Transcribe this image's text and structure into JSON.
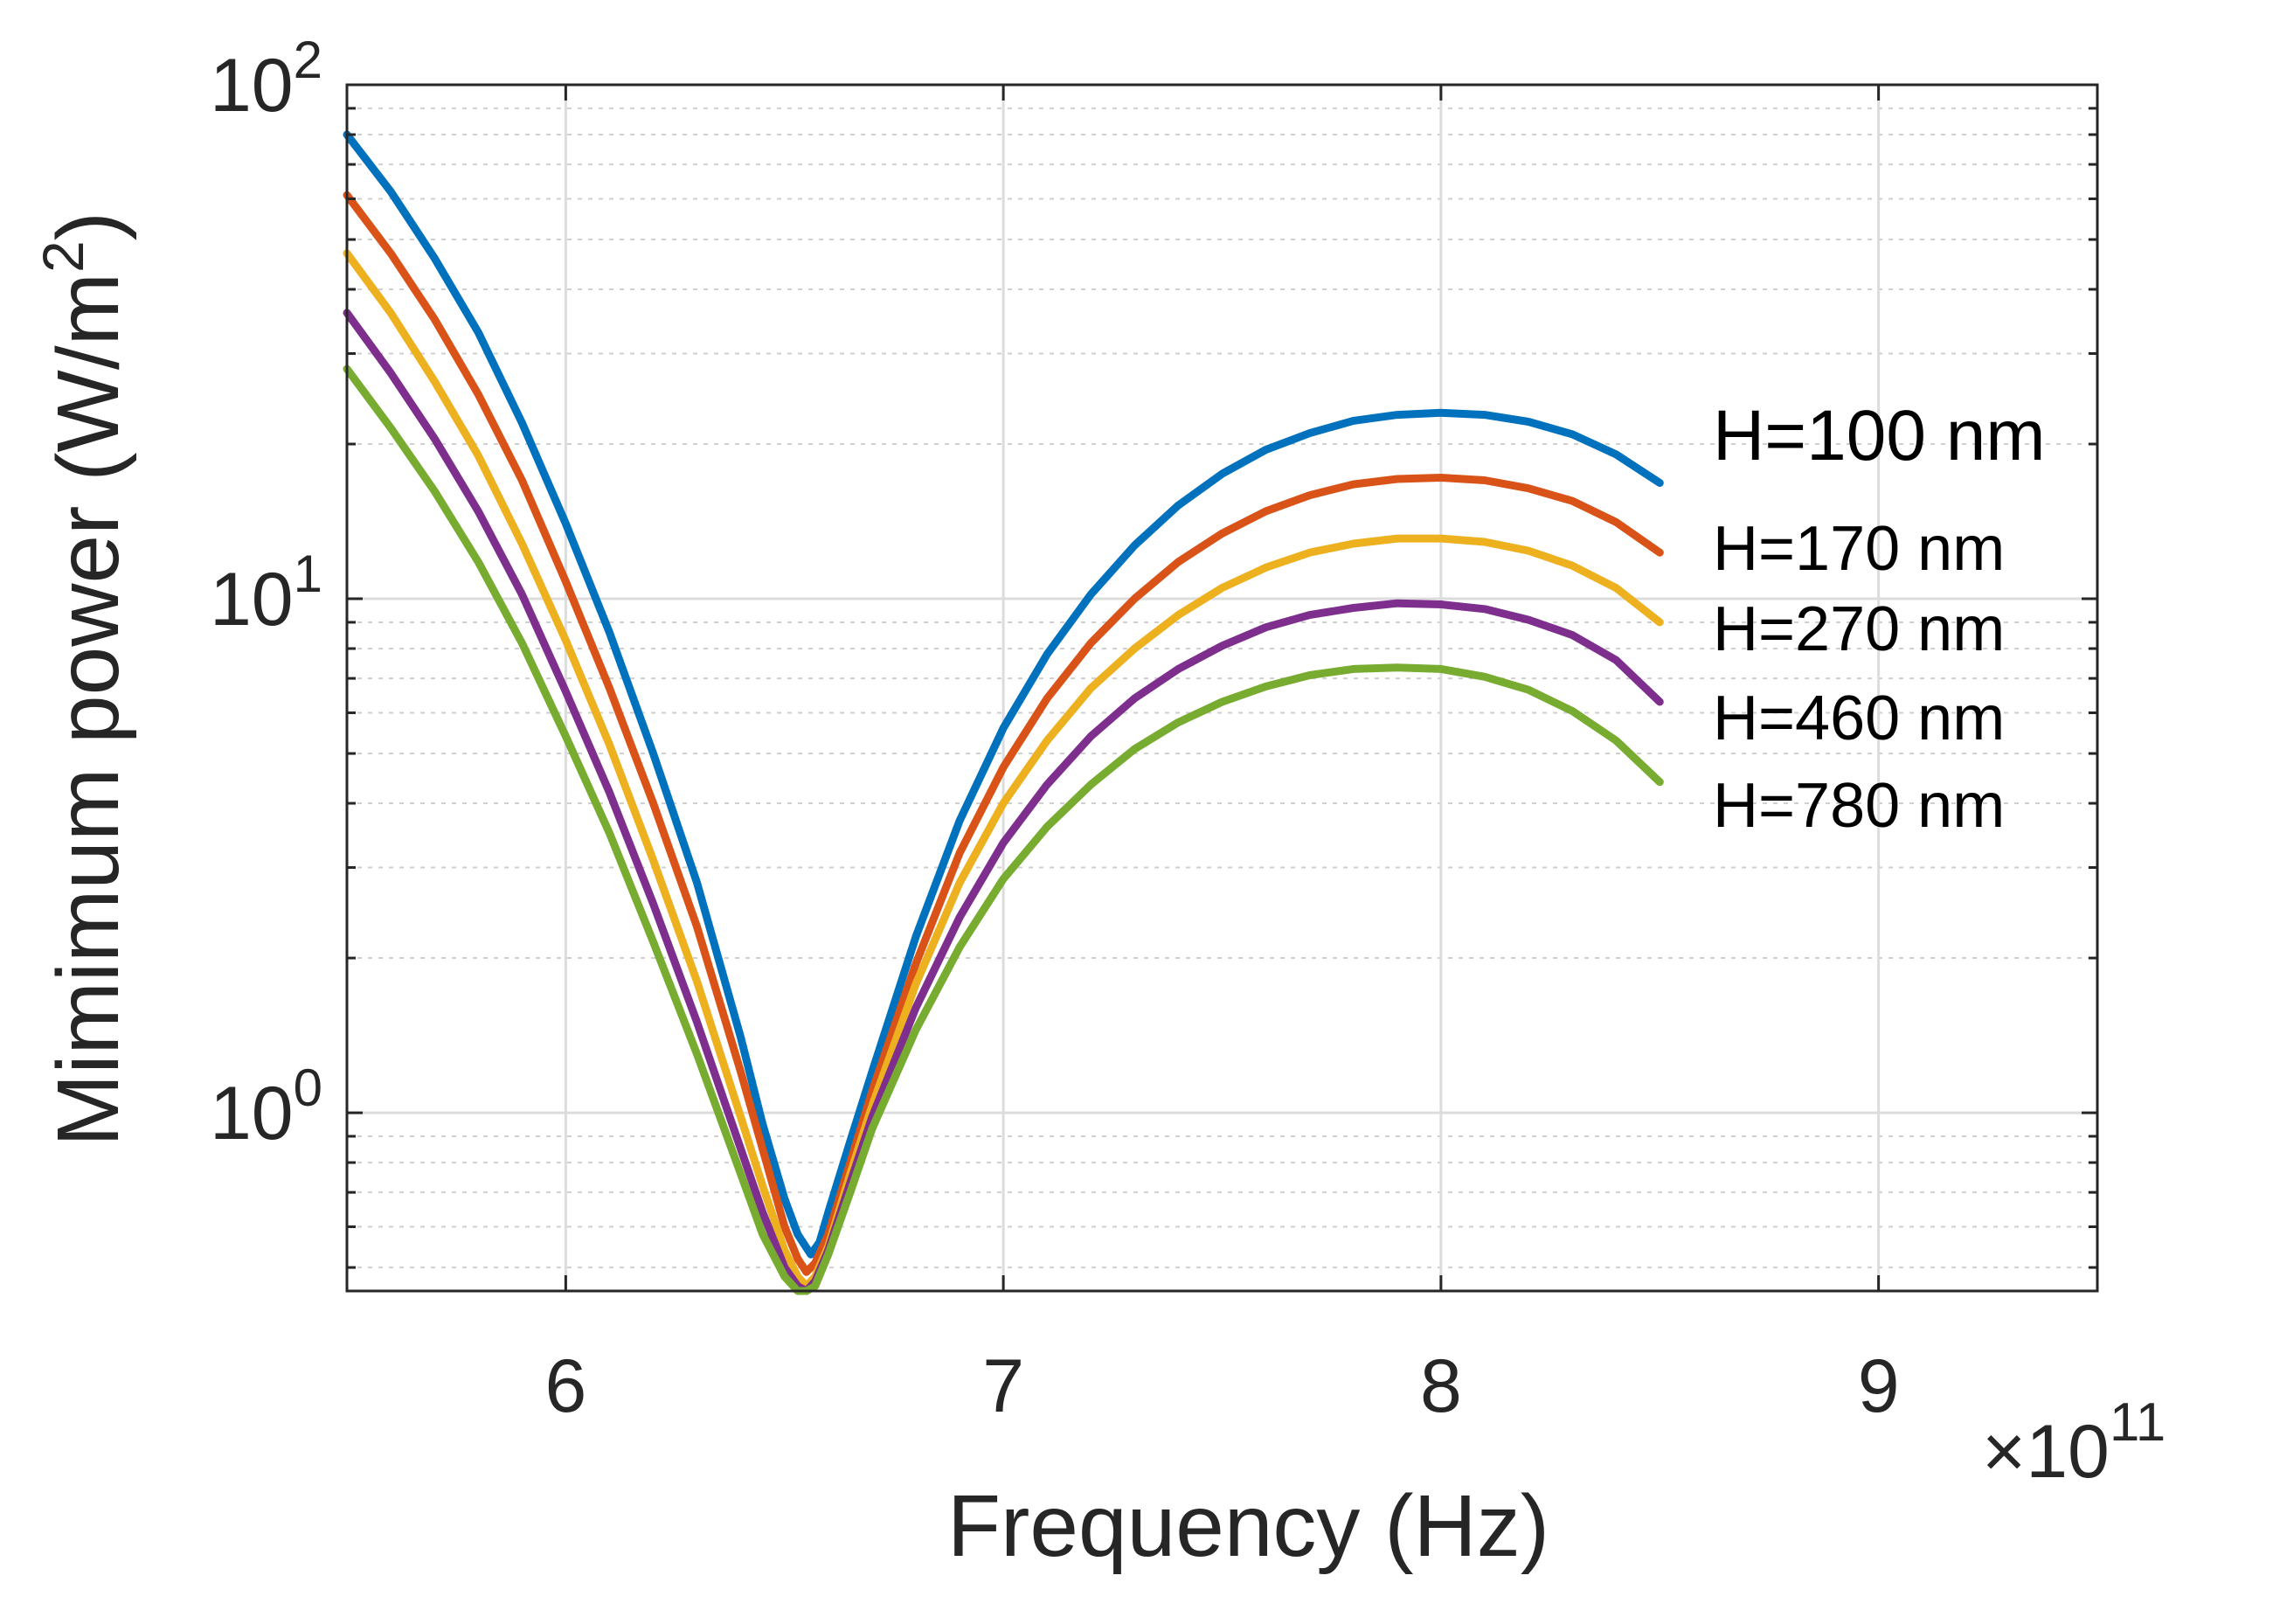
{
  "chart_data": {
    "type": "line",
    "title": "",
    "xlabel": "Frequency (Hz)",
    "ylabel": "Mimimum power (W/m²)",
    "ylabel_base": "Mimimum power (W/m",
    "ylabel_sup": "2",
    "ylabel_close": ")",
    "x_exponent_label": "×10",
    "x_exponent_power": "11",
    "xscale": "linear",
    "yscale": "log",
    "xlim": [
      5.5,
      9.5
    ],
    "ylim": [
      0.45,
      100
    ],
    "grid": true,
    "legend_position": "right",
    "xticks": [
      {
        "value": 6,
        "label": "6"
      },
      {
        "value": 7,
        "label": "7"
      },
      {
        "value": 8,
        "label": "8"
      },
      {
        "value": 9,
        "label": "9"
      }
    ],
    "yticks": [
      {
        "value": 1,
        "base": "10",
        "exp": "0"
      },
      {
        "value": 10,
        "base": "10",
        "exp": "1"
      },
      {
        "value": 100,
        "base": "10",
        "exp": "2"
      }
    ],
    "series": [
      {
        "name": "H=100 nm",
        "color": "#0072BD",
        "x": [
          5.5,
          5.6,
          5.7,
          5.8,
          5.9,
          6.0,
          6.1,
          6.2,
          6.3,
          6.4,
          6.45,
          6.5,
          6.53,
          6.56,
          6.58,
          6.6,
          6.65,
          6.7,
          6.8,
          6.9,
          7.0,
          7.1,
          7.2,
          7.3,
          7.4,
          7.5,
          7.6,
          7.7,
          7.8,
          7.9,
          8.0,
          8.1,
          8.2,
          8.3,
          8.4,
          8.5
        ],
        "y": [
          80,
          62,
          46,
          33,
          22,
          14,
          8.6,
          5.0,
          2.8,
          1.4,
          0.95,
          0.68,
          0.58,
          0.53,
          0.56,
          0.64,
          0.88,
          1.2,
          2.2,
          3.7,
          5.6,
          7.8,
          10.2,
          12.7,
          15.2,
          17.5,
          19.5,
          21.0,
          22.2,
          22.8,
          23.0,
          22.8,
          22.1,
          20.9,
          19.1,
          16.8
        ]
      },
      {
        "name": "H=170 nm",
        "color": "#D95319",
        "x": [
          5.5,
          5.6,
          5.7,
          5.8,
          5.9,
          6.0,
          6.1,
          6.2,
          6.3,
          6.4,
          6.45,
          6.5,
          6.53,
          6.55,
          6.57,
          6.6,
          6.65,
          6.7,
          6.8,
          6.9,
          7.0,
          7.1,
          7.2,
          7.3,
          7.4,
          7.5,
          7.6,
          7.7,
          7.8,
          7.9,
          8.0,
          8.1,
          8.2,
          8.3,
          8.4,
          8.5
        ],
        "y": [
          61,
          47,
          35,
          25,
          17,
          10.8,
          6.7,
          4.0,
          2.3,
          1.2,
          0.85,
          0.6,
          0.52,
          0.49,
          0.51,
          0.58,
          0.8,
          1.1,
          1.95,
          3.2,
          4.7,
          6.4,
          8.2,
          10.0,
          11.8,
          13.4,
          14.8,
          15.9,
          16.7,
          17.1,
          17.2,
          17.0,
          16.4,
          15.5,
          14.1,
          12.3
        ]
      },
      {
        "name": "H=270 nm",
        "color": "#EDB120",
        "x": [
          5.5,
          5.6,
          5.7,
          5.8,
          5.9,
          6.0,
          6.1,
          6.2,
          6.3,
          6.4,
          6.45,
          6.5,
          6.53,
          6.55,
          6.57,
          6.6,
          6.65,
          6.7,
          6.8,
          6.9,
          7.0,
          7.1,
          7.2,
          7.3,
          7.4,
          7.5,
          7.6,
          7.7,
          7.8,
          7.9,
          8.0,
          8.1,
          8.2,
          8.3,
          8.4,
          8.5
        ],
        "y": [
          47,
          36,
          26.5,
          19,
          12.8,
          8.3,
          5.2,
          3.1,
          1.8,
          0.98,
          0.72,
          0.54,
          0.48,
          0.46,
          0.48,
          0.55,
          0.76,
          1.03,
          1.78,
          2.8,
          4.0,
          5.3,
          6.7,
          8.0,
          9.3,
          10.5,
          11.5,
          12.3,
          12.8,
          13.1,
          13.1,
          12.9,
          12.4,
          11.6,
          10.5,
          9.0
        ]
      },
      {
        "name": "H=460 nm",
        "color": "#7E2F8E",
        "x": [
          5.5,
          5.6,
          5.7,
          5.8,
          5.9,
          6.0,
          6.1,
          6.2,
          6.3,
          6.4,
          6.45,
          6.5,
          6.53,
          6.55,
          6.57,
          6.6,
          6.65,
          6.7,
          6.8,
          6.9,
          7.0,
          7.1,
          7.2,
          7.3,
          7.4,
          7.5,
          7.6,
          7.7,
          7.8,
          7.9,
          8.0,
          8.1,
          8.2,
          8.3,
          8.4,
          8.5
        ],
        "y": [
          36,
          27.5,
          20.5,
          14.8,
          10.2,
          6.6,
          4.2,
          2.55,
          1.5,
          0.85,
          0.64,
          0.5,
          0.46,
          0.45,
          0.47,
          0.54,
          0.73,
          0.98,
          1.6,
          2.4,
          3.35,
          4.35,
          5.4,
          6.4,
          7.3,
          8.1,
          8.8,
          9.3,
          9.6,
          9.8,
          9.75,
          9.55,
          9.1,
          8.5,
          7.6,
          6.3
        ]
      },
      {
        "name": "H=780 nm",
        "color": "#77AC30",
        "x": [
          5.5,
          5.6,
          5.7,
          5.8,
          5.9,
          6.0,
          6.1,
          6.2,
          6.3,
          6.4,
          6.45,
          6.5,
          6.53,
          6.55,
          6.57,
          6.6,
          6.65,
          6.7,
          6.8,
          6.9,
          7.0,
          7.1,
          7.2,
          7.3,
          7.4,
          7.5,
          7.6,
          7.7,
          7.8,
          7.9,
          8.0,
          8.1,
          8.2,
          8.3,
          8.4,
          8.5
        ],
        "y": [
          28,
          21.5,
          16.2,
          11.8,
          8.2,
          5.4,
          3.5,
          2.15,
          1.3,
          0.76,
          0.58,
          0.48,
          0.45,
          0.45,
          0.46,
          0.53,
          0.7,
          0.93,
          1.45,
          2.1,
          2.85,
          3.6,
          4.35,
          5.1,
          5.75,
          6.3,
          6.75,
          7.1,
          7.3,
          7.35,
          7.3,
          7.05,
          6.65,
          6.05,
          5.3,
          4.4
        ]
      }
    ]
  }
}
